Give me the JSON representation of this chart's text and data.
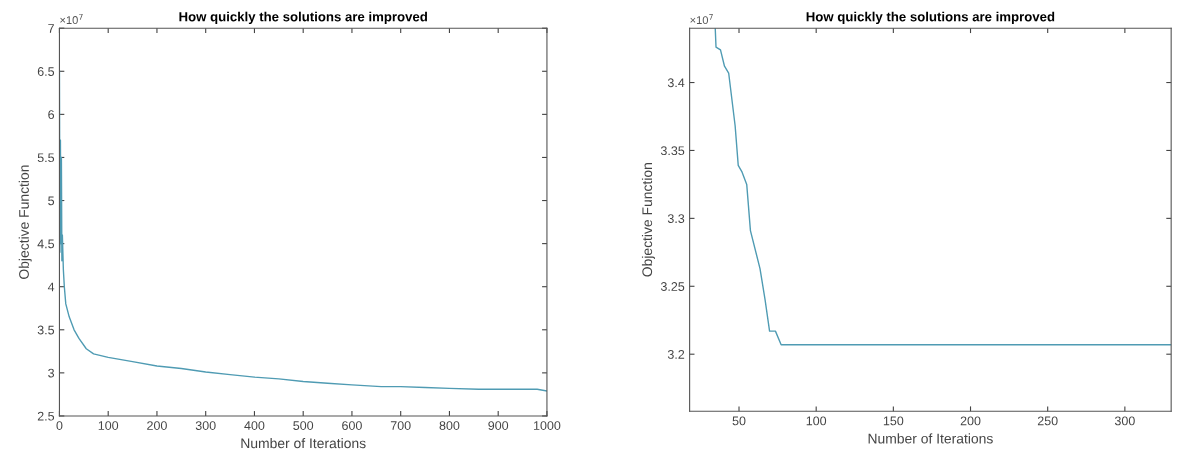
{
  "chart_data": [
    {
      "type": "line",
      "title": "How quickly the solutions are improved",
      "xlabel": "Number of Iterations",
      "ylabel": "Objective Function",
      "annotations": [
        "×10$^{7}$"
      ],
      "x": [
        0,
        1,
        2,
        3,
        4,
        5,
        6,
        8,
        10,
        13,
        20,
        30,
        40,
        55,
        70,
        100,
        150,
        200,
        250,
        300,
        350,
        400,
        450,
        500,
        550,
        600,
        660,
        700,
        750,
        800,
        860,
        900,
        980,
        1000
      ],
      "series": [
        {
          "color": "#4f9bb3",
          "values": [
            6.5,
            4.4,
            5.7,
            4.5,
            5.5,
            4.3,
            4.6,
            4.2,
            4.0,
            3.8,
            3.65,
            3.5,
            3.4,
            3.28,
            3.22,
            3.18,
            3.13,
            3.08,
            3.05,
            3.01,
            2.98,
            2.95,
            2.93,
            2.9,
            2.88,
            2.86,
            2.84,
            2.84,
            2.83,
            2.82,
            2.81,
            2.81,
            2.81,
            2.79
          ]
        }
      ],
      "xlim": [
        0,
        1000
      ],
      "ylim": [
        2.5,
        7
      ],
      "xticks": [
        0,
        100,
        200,
        300,
        400,
        500,
        600,
        700,
        800,
        900,
        1000
      ],
      "yticks": [
        2.5,
        3,
        3.5,
        4,
        4.5,
        5,
        5.5,
        6,
        6.5,
        7
      ],
      "grid": false,
      "legend": false
    },
    {
      "type": "line",
      "title": "How quickly the solutions are improved",
      "xlabel": "Number of Iterations",
      "ylabel": "Objective Function",
      "annotations": [
        "×10$^{7}$"
      ],
      "x": [
        34.6,
        35.1,
        38,
        40.6,
        43.3,
        47.5,
        49.5,
        52,
        55,
        57.4,
        63.6,
        66.9,
        69.8,
        73.6,
        77.3,
        330
      ],
      "series": [
        {
          "color": "#4f9bb3",
          "values": [
            3.44,
            3.426,
            3.424,
            3.412,
            3.407,
            3.368,
            3.339,
            3.334,
            3.325,
            3.291,
            3.263,
            3.24,
            3.217,
            3.217,
            3.207,
            3.207
          ]
        }
      ],
      "xlim": [
        18,
        330
      ],
      "ylim": [
        3.158,
        3.44
      ],
      "xticks": [
        50,
        100,
        150,
        200,
        250,
        300
      ],
      "yticks": [
        3.2,
        3.25,
        3.3,
        3.35,
        3.4
      ],
      "grid": false,
      "legend": false
    }
  ]
}
